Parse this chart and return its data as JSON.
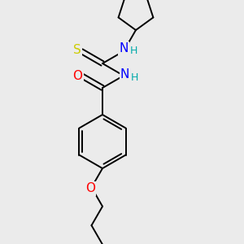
{
  "background_color": "#ebebeb",
  "atom_colors": {
    "S": "#cccc00",
    "N": "#0000ff",
    "O": "#ff0000",
    "C": "#000000",
    "H": "#00aaaa"
  },
  "bond_color": "#000000",
  "bond_width": 1.4,
  "figsize": [
    3.0,
    3.0
  ],
  "dpi": 100,
  "xlim": [
    0,
    10
  ],
  "ylim": [
    0,
    10
  ]
}
